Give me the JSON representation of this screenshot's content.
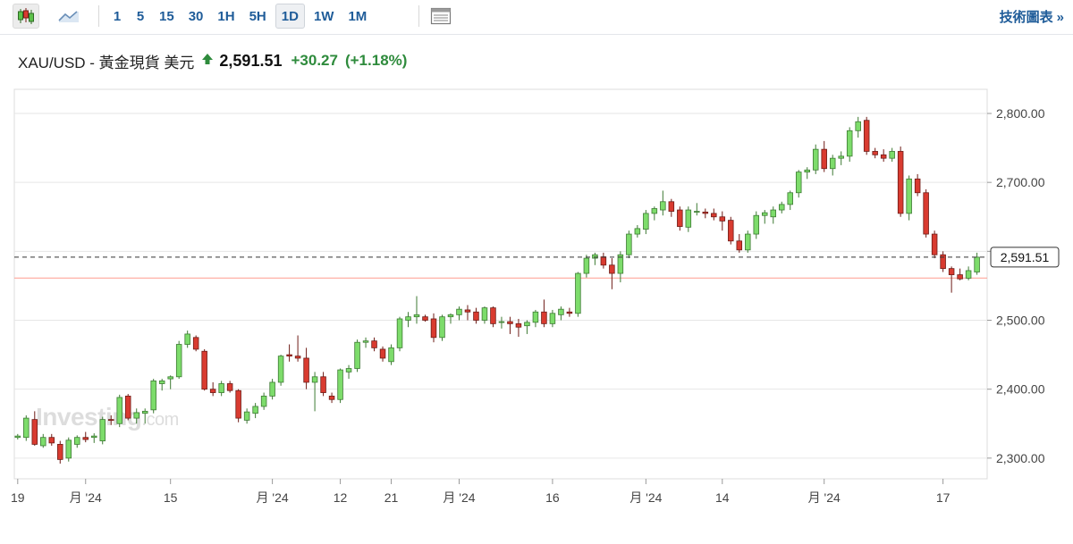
{
  "toolbar": {
    "icons": [
      {
        "name": "candlestick-icon",
        "active": true
      },
      {
        "name": "area-chart-icon",
        "active": false
      }
    ],
    "intervals": [
      {
        "label": "1",
        "active": false
      },
      {
        "label": "5",
        "active": false
      },
      {
        "label": "15",
        "active": false
      },
      {
        "label": "30",
        "active": false
      },
      {
        "label": "1H",
        "active": false
      },
      {
        "label": "5H",
        "active": false
      },
      {
        "label": "1D",
        "active": true
      },
      {
        "label": "1W",
        "active": false
      },
      {
        "label": "1M",
        "active": false
      }
    ],
    "layout_icon": "table-layout-icon",
    "tech_link": "技術圖表",
    "tech_arrow": "»"
  },
  "quote": {
    "title": "XAU/USD - 黃金現貨 美元",
    "price": "2,591.51",
    "change": "+30.27",
    "change_pct": "(+1.18%)",
    "direction_icon": "up-arrow-icon"
  },
  "watermark": {
    "brand": "Investing",
    "domain": ".com"
  },
  "colors": {
    "up": "#7ddc6b",
    "up_border": "#3d7a33",
    "down": "#d93b30",
    "down_border": "#6e1c17",
    "grid": "#e6e6e6",
    "price_line": "#ff9b8f",
    "text_blue": "#1f5c99",
    "positive": "#2e8b3c"
  },
  "chart_data": {
    "type": "candlestick",
    "ylim": [
      2270,
      2835
    ],
    "y_ticks": [
      "2,300.00",
      "2,400.00",
      "2,500.00",
      "2,600.00",
      "2,700.00",
      "2,800.00"
    ],
    "y_tick_values": [
      2300,
      2400,
      2500,
      2600,
      2700,
      2800
    ],
    "x_tick_labels": [
      {
        "label": "19",
        "index": 0
      },
      {
        "label": "月 '24",
        "index": 8
      },
      {
        "label": "15",
        "index": 18
      },
      {
        "label": "月 '24",
        "index": 30
      },
      {
        "label": "12",
        "index": 38
      },
      {
        "label": "21",
        "index": 44
      },
      {
        "label": "月 '24",
        "index": 52
      },
      {
        "label": "16",
        "index": 63
      },
      {
        "label": "月 '24",
        "index": 74
      },
      {
        "label": "14",
        "index": 83
      },
      {
        "label": "月 '24",
        "index": 95
      },
      {
        "label": "17",
        "index": 109
      }
    ],
    "current_price": 2591.51,
    "current_price_label": "2,591.51",
    "previous_close": 2561.24,
    "candles": [
      [
        2330,
        2335,
        2327,
        2332
      ],
      [
        2330,
        2362,
        2325,
        2358
      ],
      [
        2356,
        2368,
        2318,
        2320
      ],
      [
        2318,
        2335,
        2315,
        2330
      ],
      [
        2330,
        2335,
        2318,
        2322
      ],
      [
        2320,
        2325,
        2292,
        2298
      ],
      [
        2300,
        2330,
        2295,
        2326
      ],
      [
        2320,
        2333,
        2315,
        2330
      ],
      [
        2330,
        2338,
        2323,
        2327
      ],
      [
        2330,
        2336,
        2322,
        2332
      ],
      [
        2325,
        2360,
        2320,
        2356
      ],
      [
        2356,
        2362,
        2348,
        2355
      ],
      [
        2350,
        2392,
        2345,
        2388
      ],
      [
        2390,
        2393,
        2355,
        2358
      ],
      [
        2358,
        2372,
        2350,
        2366
      ],
      [
        2365,
        2372,
        2350,
        2368
      ],
      [
        2370,
        2415,
        2365,
        2412
      ],
      [
        2408,
        2415,
        2398,
        2412
      ],
      [
        2415,
        2420,
        2400,
        2418
      ],
      [
        2418,
        2470,
        2415,
        2465
      ],
      [
        2465,
        2485,
        2460,
        2480
      ],
      [
        2475,
        2478,
        2455,
        2458
      ],
      [
        2455,
        2458,
        2398,
        2400
      ],
      [
        2400,
        2410,
        2390,
        2395
      ],
      [
        2395,
        2412,
        2390,
        2408
      ],
      [
        2408,
        2412,
        2395,
        2398
      ],
      [
        2398,
        2400,
        2352,
        2358
      ],
      [
        2355,
        2372,
        2350,
        2367
      ],
      [
        2365,
        2380,
        2358,
        2375
      ],
      [
        2375,
        2395,
        2370,
        2390
      ],
      [
        2390,
        2415,
        2385,
        2410
      ],
      [
        2410,
        2450,
        2405,
        2448
      ],
      [
        2450,
        2465,
        2440,
        2448
      ],
      [
        2448,
        2478,
        2440,
        2445
      ],
      [
        2445,
        2460,
        2400,
        2410
      ],
      [
        2410,
        2425,
        2368,
        2418
      ],
      [
        2418,
        2425,
        2390,
        2395
      ],
      [
        2390,
        2395,
        2380,
        2385
      ],
      [
        2385,
        2430,
        2380,
        2428
      ],
      [
        2425,
        2435,
        2415,
        2430
      ],
      [
        2430,
        2472,
        2425,
        2468
      ],
      [
        2468,
        2475,
        2460,
        2470
      ],
      [
        2470,
        2475,
        2455,
        2460
      ],
      [
        2458,
        2462,
        2440,
        2445
      ],
      [
        2440,
        2465,
        2435,
        2460
      ],
      [
        2460,
        2505,
        2455,
        2502
      ],
      [
        2500,
        2512,
        2490,
        2505
      ],
      [
        2505,
        2535,
        2495,
        2508
      ],
      [
        2505,
        2508,
        2498,
        2500
      ],
      [
        2502,
        2510,
        2468,
        2475
      ],
      [
        2475,
        2508,
        2470,
        2505
      ],
      [
        2505,
        2510,
        2495,
        2508
      ],
      [
        2508,
        2520,
        2500,
        2516
      ],
      [
        2515,
        2522,
        2500,
        2512
      ],
      [
        2512,
        2518,
        2495,
        2500
      ],
      [
        2500,
        2520,
        2495,
        2518
      ],
      [
        2518,
        2520,
        2490,
        2495
      ],
      [
        2497,
        2505,
        2488,
        2498
      ],
      [
        2498,
        2505,
        2480,
        2495
      ],
      [
        2495,
        2502,
        2476,
        2490
      ],
      [
        2492,
        2500,
        2480,
        2497
      ],
      [
        2497,
        2515,
        2490,
        2512
      ],
      [
        2512,
        2530,
        2490,
        2495
      ],
      [
        2495,
        2515,
        2490,
        2510
      ],
      [
        2508,
        2520,
        2500,
        2516
      ],
      [
        2512,
        2518,
        2505,
        2510
      ],
      [
        2510,
        2570,
        2505,
        2568
      ],
      [
        2568,
        2595,
        2562,
        2590
      ],
      [
        2590,
        2598,
        2580,
        2595
      ],
      [
        2592,
        2598,
        2575,
        2580
      ],
      [
        2580,
        2590,
        2545,
        2568
      ],
      [
        2568,
        2600,
        2555,
        2595
      ],
      [
        2595,
        2630,
        2590,
        2625
      ],
      [
        2625,
        2638,
        2620,
        2633
      ],
      [
        2632,
        2660,
        2625,
        2655
      ],
      [
        2655,
        2665,
        2645,
        2662
      ],
      [
        2660,
        2688,
        2652,
        2672
      ],
      [
        2672,
        2676,
        2650,
        2658
      ],
      [
        2660,
        2665,
        2630,
        2636
      ],
      [
        2635,
        2665,
        2628,
        2660
      ],
      [
        2658,
        2670,
        2652,
        2658
      ],
      [
        2657,
        2662,
        2648,
        2655
      ],
      [
        2655,
        2662,
        2645,
        2650
      ],
      [
        2650,
        2658,
        2630,
        2644
      ],
      [
        2645,
        2650,
        2610,
        2615
      ],
      [
        2615,
        2625,
        2598,
        2602
      ],
      [
        2602,
        2630,
        2598,
        2625
      ],
      [
        2625,
        2658,
        2618,
        2652
      ],
      [
        2652,
        2660,
        2640,
        2656
      ],
      [
        2650,
        2665,
        2640,
        2660
      ],
      [
        2660,
        2672,
        2655,
        2668
      ],
      [
        2668,
        2688,
        2660,
        2685
      ],
      [
        2685,
        2718,
        2678,
        2715
      ],
      [
        2715,
        2722,
        2705,
        2718
      ],
      [
        2718,
        2755,
        2712,
        2748
      ],
      [
        2748,
        2760,
        2715,
        2720
      ],
      [
        2720,
        2740,
        2710,
        2735
      ],
      [
        2735,
        2745,
        2725,
        2738
      ],
      [
        2738,
        2780,
        2730,
        2775
      ],
      [
        2775,
        2795,
        2765,
        2788
      ],
      [
        2790,
        2795,
        2740,
        2745
      ],
      [
        2745,
        2750,
        2735,
        2740
      ],
      [
        2740,
        2748,
        2730,
        2735
      ],
      [
        2735,
        2750,
        2730,
        2745
      ],
      [
        2745,
        2752,
        2650,
        2655
      ],
      [
        2655,
        2710,
        2645,
        2705
      ],
      [
        2705,
        2712,
        2680,
        2685
      ],
      [
        2685,
        2690,
        2620,
        2625
      ],
      [
        2625,
        2630,
        2590,
        2595
      ],
      [
        2595,
        2600,
        2570,
        2575
      ],
      [
        2575,
        2578,
        2540,
        2566
      ],
      [
        2566,
        2575,
        2558,
        2560
      ],
      [
        2561,
        2578,
        2558,
        2572
      ],
      [
        2570,
        2598,
        2566,
        2591.51
      ]
    ]
  }
}
